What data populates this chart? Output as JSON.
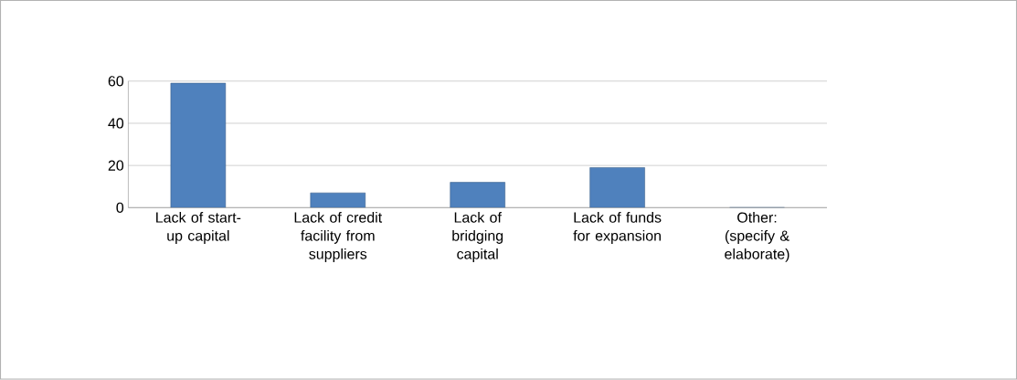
{
  "chart_data": {
    "type": "bar",
    "categories": [
      "Lack of start-up capital",
      "Lack of credit facility from suppliers",
      "Lack of bridging capital",
      "Lack of funds for expansion",
      "Other: (specify & elaborate)"
    ],
    "values": [
      59,
      7,
      12,
      19,
      0
    ],
    "color": "#4f81bd",
    "ylim": [
      0,
      60
    ],
    "yticks": [
      0,
      20,
      40,
      60
    ],
    "grid": "y"
  }
}
